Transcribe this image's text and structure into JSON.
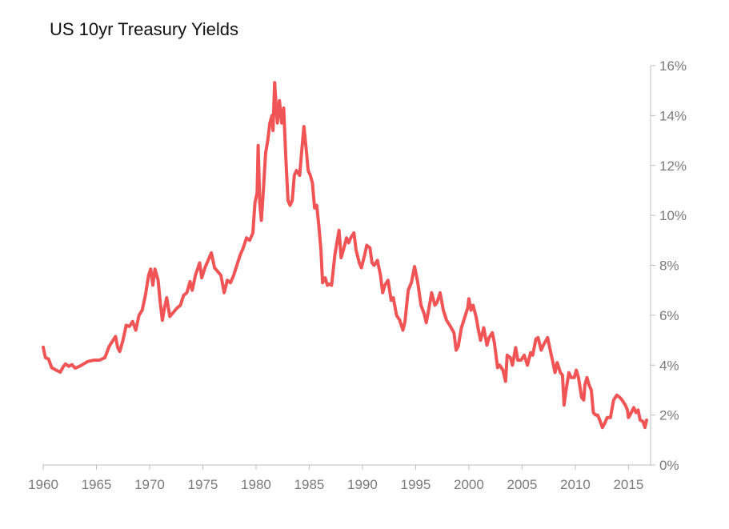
{
  "chart_data": {
    "type": "line",
    "title": "US 10yr Treasury Yields",
    "xlabel": "",
    "ylabel": "",
    "xlim": [
      1960,
      2016.7
    ],
    "ylim": [
      0,
      16
    ],
    "x_ticks": [
      {
        "value": 1960,
        "label": "1960"
      },
      {
        "value": 1965,
        "label": "1965"
      },
      {
        "value": 1970,
        "label": "1970"
      },
      {
        "value": 1975,
        "label": "1975"
      },
      {
        "value": 1980,
        "label": "1980"
      },
      {
        "value": 1985,
        "label": "1985"
      },
      {
        "value": 1990,
        "label": "1990"
      },
      {
        "value": 1995,
        "label": "1995"
      },
      {
        "value": 2000,
        "label": "2000"
      },
      {
        "value": 2005,
        "label": "2005"
      },
      {
        "value": 2010,
        "label": "2010"
      },
      {
        "value": 2015,
        "label": "2015"
      }
    ],
    "y_ticks": [
      {
        "value": 0,
        "label": "0%"
      },
      {
        "value": 2,
        "label": "2%"
      },
      {
        "value": 4,
        "label": "4%"
      },
      {
        "value": 6,
        "label": "6%"
      },
      {
        "value": 8,
        "label": "8%"
      },
      {
        "value": 10,
        "label": "10%"
      },
      {
        "value": 12,
        "label": "12%"
      },
      {
        "value": 14,
        "label": "14%"
      },
      {
        "value": 16,
        "label": "16%"
      }
    ],
    "y_axis_position": "right",
    "grid": false,
    "legend": "none",
    "series": [
      {
        "color": "#f05454",
        "points": [
          [
            1960.0,
            4.72
          ],
          [
            1960.2,
            4.3
          ],
          [
            1960.5,
            4.25
          ],
          [
            1960.8,
            3.9
          ],
          [
            1961.0,
            3.85
          ],
          [
            1961.3,
            3.78
          ],
          [
            1961.6,
            3.72
          ],
          [
            1961.9,
            3.95
          ],
          [
            1962.1,
            4.05
          ],
          [
            1962.4,
            3.95
          ],
          [
            1962.7,
            4.02
          ],
          [
            1963.0,
            3.88
          ],
          [
            1963.4,
            3.95
          ],
          [
            1963.8,
            4.05
          ],
          [
            1964.2,
            4.15
          ],
          [
            1964.8,
            4.2
          ],
          [
            1965.3,
            4.2
          ],
          [
            1965.8,
            4.3
          ],
          [
            1966.2,
            4.75
          ],
          [
            1966.5,
            4.95
          ],
          [
            1966.8,
            5.15
          ],
          [
            1967.0,
            4.7
          ],
          [
            1967.2,
            4.55
          ],
          [
            1967.5,
            5.0
          ],
          [
            1967.8,
            5.6
          ],
          [
            1968.1,
            5.55
          ],
          [
            1968.4,
            5.75
          ],
          [
            1968.7,
            5.4
          ],
          [
            1969.0,
            6.0
          ],
          [
            1969.3,
            6.2
          ],
          [
            1969.6,
            6.8
          ],
          [
            1969.9,
            7.6
          ],
          [
            1970.1,
            7.85
          ],
          [
            1970.3,
            7.2
          ],
          [
            1970.5,
            7.85
          ],
          [
            1970.8,
            7.4
          ],
          [
            1971.0,
            6.5
          ],
          [
            1971.2,
            5.8
          ],
          [
            1971.4,
            6.3
          ],
          [
            1971.6,
            6.7
          ],
          [
            1971.9,
            5.95
          ],
          [
            1972.2,
            6.1
          ],
          [
            1972.6,
            6.3
          ],
          [
            1972.9,
            6.4
          ],
          [
            1973.2,
            6.8
          ],
          [
            1973.5,
            6.9
          ],
          [
            1973.8,
            7.35
          ],
          [
            1974.0,
            7.0
          ],
          [
            1974.3,
            7.6
          ],
          [
            1974.7,
            8.1
          ],
          [
            1974.9,
            7.5
          ],
          [
            1975.2,
            7.9
          ],
          [
            1975.5,
            8.2
          ],
          [
            1975.8,
            8.5
          ],
          [
            1976.1,
            7.9
          ],
          [
            1976.4,
            7.75
          ],
          [
            1976.7,
            7.6
          ],
          [
            1977.0,
            6.9
          ],
          [
            1977.3,
            7.4
          ],
          [
            1977.6,
            7.3
          ],
          [
            1977.9,
            7.6
          ],
          [
            1978.2,
            8.0
          ],
          [
            1978.5,
            8.4
          ],
          [
            1978.8,
            8.7
          ],
          [
            1979.1,
            9.1
          ],
          [
            1979.4,
            9.0
          ],
          [
            1979.7,
            9.3
          ],
          [
            1979.9,
            10.5
          ],
          [
            1980.1,
            10.9
          ],
          [
            1980.2,
            12.8
          ],
          [
            1980.35,
            10.5
          ],
          [
            1980.5,
            9.8
          ],
          [
            1980.7,
            11.1
          ],
          [
            1980.9,
            12.5
          ],
          [
            1981.1,
            13.0
          ],
          [
            1981.3,
            13.7
          ],
          [
            1981.5,
            14.0
          ],
          [
            1981.6,
            13.4
          ],
          [
            1981.75,
            15.32
          ],
          [
            1981.9,
            14.3
          ],
          [
            1982.0,
            13.7
          ],
          [
            1982.2,
            14.6
          ],
          [
            1982.4,
            13.7
          ],
          [
            1982.6,
            14.3
          ],
          [
            1982.8,
            12.3
          ],
          [
            1983.0,
            10.6
          ],
          [
            1983.2,
            10.4
          ],
          [
            1983.4,
            10.6
          ],
          [
            1983.6,
            11.6
          ],
          [
            1983.8,
            11.8
          ],
          [
            1984.1,
            11.6
          ],
          [
            1984.3,
            12.6
          ],
          [
            1984.5,
            13.56
          ],
          [
            1984.7,
            12.7
          ],
          [
            1984.9,
            11.8
          ],
          [
            1985.1,
            11.6
          ],
          [
            1985.3,
            11.3
          ],
          [
            1985.5,
            10.3
          ],
          [
            1985.7,
            10.4
          ],
          [
            1985.9,
            9.6
          ],
          [
            1986.1,
            8.6
          ],
          [
            1986.25,
            7.3
          ],
          [
            1986.5,
            7.5
          ],
          [
            1986.7,
            7.2
          ],
          [
            1986.9,
            7.25
          ],
          [
            1987.1,
            7.2
          ],
          [
            1987.4,
            8.4
          ],
          [
            1987.6,
            8.9
          ],
          [
            1987.8,
            9.4
          ],
          [
            1988.0,
            8.3
          ],
          [
            1988.2,
            8.6
          ],
          [
            1988.5,
            9.1
          ],
          [
            1988.7,
            8.9
          ],
          [
            1988.9,
            9.1
          ],
          [
            1989.2,
            9.3
          ],
          [
            1989.4,
            8.6
          ],
          [
            1989.7,
            8.1
          ],
          [
            1989.9,
            7.9
          ],
          [
            1990.2,
            8.4
          ],
          [
            1990.4,
            8.8
          ],
          [
            1990.7,
            8.7
          ],
          [
            1990.9,
            8.1
          ],
          [
            1991.1,
            8.0
          ],
          [
            1991.4,
            8.2
          ],
          [
            1991.7,
            7.6
          ],
          [
            1991.9,
            6.9
          ],
          [
            1992.1,
            7.2
          ],
          [
            1992.4,
            7.4
          ],
          [
            1992.7,
            6.6
          ],
          [
            1992.9,
            6.7
          ],
          [
            1993.2,
            6.0
          ],
          [
            1993.5,
            5.8
          ],
          [
            1993.8,
            5.4
          ],
          [
            1994.0,
            5.75
          ],
          [
            1994.3,
            7.0
          ],
          [
            1994.6,
            7.3
          ],
          [
            1994.8,
            7.75
          ],
          [
            1994.9,
            7.95
          ],
          [
            1995.2,
            7.3
          ],
          [
            1995.5,
            6.4
          ],
          [
            1995.8,
            6.05
          ],
          [
            1996.0,
            5.7
          ],
          [
            1996.3,
            6.4
          ],
          [
            1996.5,
            6.9
          ],
          [
            1996.8,
            6.4
          ],
          [
            1997.0,
            6.5
          ],
          [
            1997.3,
            6.9
          ],
          [
            1997.6,
            6.2
          ],
          [
            1997.9,
            5.8
          ],
          [
            1998.2,
            5.6
          ],
          [
            1998.6,
            5.3
          ],
          [
            1998.8,
            4.6
          ],
          [
            1999.0,
            4.75
          ],
          [
            1999.3,
            5.5
          ],
          [
            1999.6,
            5.9
          ],
          [
            1999.9,
            6.3
          ],
          [
            2000.0,
            6.66
          ],
          [
            2000.2,
            6.2
          ],
          [
            2000.4,
            6.4
          ],
          [
            2000.7,
            5.9
          ],
          [
            2000.9,
            5.4
          ],
          [
            2001.1,
            5.0
          ],
          [
            2001.4,
            5.5
          ],
          [
            2001.7,
            4.8
          ],
          [
            2001.9,
            5.1
          ],
          [
            2002.2,
            5.3
          ],
          [
            2002.4,
            4.9
          ],
          [
            2002.7,
            3.9
          ],
          [
            2002.9,
            4.0
          ],
          [
            2003.2,
            3.8
          ],
          [
            2003.45,
            3.35
          ],
          [
            2003.6,
            4.4
          ],
          [
            2003.9,
            4.3
          ],
          [
            2004.1,
            4.0
          ],
          [
            2004.4,
            4.7
          ],
          [
            2004.6,
            4.2
          ],
          [
            2004.9,
            4.2
          ],
          [
            2005.2,
            4.4
          ],
          [
            2005.5,
            4.0
          ],
          [
            2005.8,
            4.5
          ],
          [
            2006.0,
            4.4
          ],
          [
            2006.3,
            5.05
          ],
          [
            2006.5,
            5.1
          ],
          [
            2006.8,
            4.6
          ],
          [
            2007.0,
            4.8
          ],
          [
            2007.4,
            5.1
          ],
          [
            2007.7,
            4.5
          ],
          [
            2007.9,
            4.1
          ],
          [
            2008.1,
            3.7
          ],
          [
            2008.3,
            4.1
          ],
          [
            2008.6,
            3.7
          ],
          [
            2008.8,
            3.6
          ],
          [
            2008.95,
            2.4
          ],
          [
            2009.1,
            2.9
          ],
          [
            2009.4,
            3.7
          ],
          [
            2009.6,
            3.5
          ],
          [
            2009.9,
            3.5
          ],
          [
            2010.1,
            3.8
          ],
          [
            2010.3,
            3.5
          ],
          [
            2010.6,
            2.7
          ],
          [
            2010.8,
            2.6
          ],
          [
            2010.9,
            3.2
          ],
          [
            2011.1,
            3.5
          ],
          [
            2011.3,
            3.2
          ],
          [
            2011.5,
            3.0
          ],
          [
            2011.7,
            2.1
          ],
          [
            2011.9,
            2.0
          ],
          [
            2012.1,
            2.0
          ],
          [
            2012.3,
            1.8
          ],
          [
            2012.55,
            1.5
          ],
          [
            2012.8,
            1.7
          ],
          [
            2013.0,
            1.9
          ],
          [
            2013.3,
            1.9
          ],
          [
            2013.6,
            2.6
          ],
          [
            2013.9,
            2.8
          ],
          [
            2014.2,
            2.7
          ],
          [
            2014.4,
            2.6
          ],
          [
            2014.7,
            2.4
          ],
          [
            2014.9,
            2.2
          ],
          [
            2015.0,
            1.9
          ],
          [
            2015.2,
            2.05
          ],
          [
            2015.5,
            2.3
          ],
          [
            2015.7,
            2.1
          ],
          [
            2015.9,
            2.2
          ],
          [
            2016.1,
            1.8
          ],
          [
            2016.35,
            1.75
          ],
          [
            2016.55,
            1.5
          ],
          [
            2016.7,
            1.8
          ]
        ]
      }
    ]
  }
}
